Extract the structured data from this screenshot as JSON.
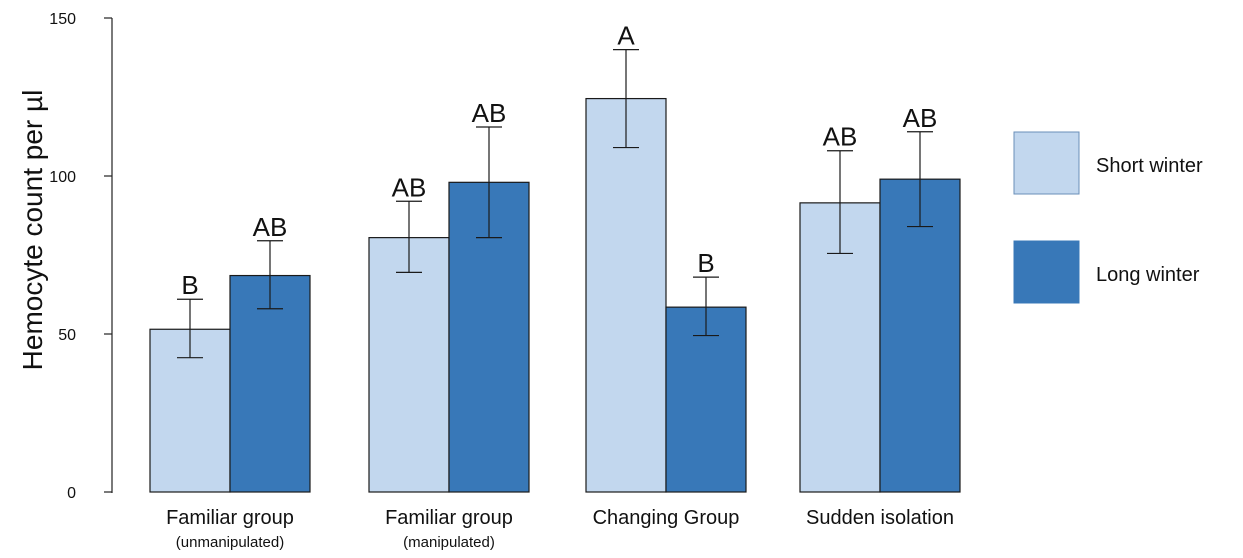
{
  "chart_data": {
    "type": "bar",
    "title": "",
    "ylabel": "Hemocyte count per µl",
    "xlabel": "",
    "ylim": [
      0,
      150
    ],
    "yticks": [
      0,
      50,
      100,
      150
    ],
    "grid": false,
    "legend_position": "right",
    "categories": [
      {
        "label": "Familiar group",
        "sublabel": "(unmanipulated)"
      },
      {
        "label": "Familiar group",
        "sublabel": "(manipulated)"
      },
      {
        "label": "Changing Group",
        "sublabel": ""
      },
      {
        "label": "Sudden isolation",
        "sublabel": ""
      }
    ],
    "series": [
      {
        "name": "Short winter",
        "color": "#c2d7ee",
        "values": [
          51.5,
          80.5,
          124.5,
          91.5
        ],
        "error_low": [
          42.5,
          69.5,
          109,
          75.5
        ],
        "error_high": [
          61,
          92,
          140,
          108
        ],
        "significance": [
          "B",
          "AB",
          "A",
          "AB"
        ]
      },
      {
        "name": "Long winter",
        "color": "#3878b8",
        "values": [
          68.5,
          98,
          58.5,
          99
        ],
        "error_low": [
          58,
          80.5,
          49.5,
          84
        ],
        "error_high": [
          79.5,
          115.5,
          68,
          114
        ],
        "significance": [
          "AB",
          "AB",
          "B",
          "AB"
        ]
      }
    ]
  }
}
